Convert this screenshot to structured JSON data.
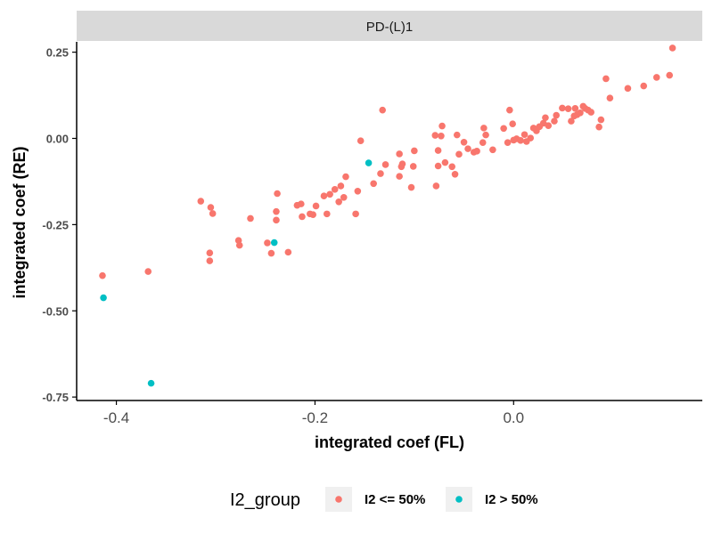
{
  "chart_data": {
    "type": "scatter",
    "facet_label": "PD-(L)1",
    "xlabel": "integrated coef (FL)",
    "ylabel": "integrated coef (RE)",
    "xlim": [
      -0.44,
      0.19
    ],
    "ylim": [
      -0.76,
      0.28
    ],
    "x_ticks": [
      -0.4,
      -0.2,
      0.0
    ],
    "x_tick_labels": [
      "-0.4",
      "-0.2",
      "0.0"
    ],
    "y_ticks": [
      0.25,
      0.0,
      -0.25,
      -0.5,
      -0.75
    ],
    "y_tick_labels": [
      "0.25",
      "0.00",
      "-0.25",
      "-0.50",
      "-0.75"
    ],
    "grid": false,
    "legend": {
      "title": "I2_group",
      "position": "bottom",
      "entries": [
        "I2 <= 50%",
        "I2 > 50%"
      ]
    },
    "colors": {
      "low": "#F8766D",
      "high": "#00BFC4",
      "facet_bg": "#D9D9D9",
      "axis": "#000000"
    },
    "series": [
      {
        "name": "I2 <= 50%",
        "points": [
          [
            0.16,
            0.262
          ],
          [
            0.157,
            0.183
          ],
          [
            0.144,
            0.177
          ],
          [
            0.131,
            0.152
          ],
          [
            0.115,
            0.145
          ],
          [
            0.097,
            0.117
          ],
          [
            0.093,
            0.173
          ],
          [
            0.088,
            0.054
          ],
          [
            0.086,
            0.033
          ],
          [
            0.078,
            0.076
          ],
          [
            0.075,
            0.082
          ],
          [
            0.072,
            0.087
          ],
          [
            0.07,
            0.093
          ],
          [
            0.067,
            0.074
          ],
          [
            0.064,
            0.069
          ],
          [
            0.062,
            0.087
          ],
          [
            0.061,
            0.065
          ],
          [
            0.058,
            0.05
          ],
          [
            0.055,
            0.086
          ],
          [
            0.049,
            0.088
          ],
          [
            0.043,
            0.067
          ],
          [
            0.041,
            0.05
          ],
          [
            0.035,
            0.037
          ],
          [
            0.032,
            0.06
          ],
          [
            0.03,
            0.044
          ],
          [
            0.026,
            0.034
          ],
          [
            0.023,
            0.022
          ],
          [
            0.02,
            0.03
          ],
          [
            0.017,
            0.001
          ],
          [
            0.013,
            -0.009
          ],
          [
            0.011,
            0.011
          ],
          [
            0.007,
            -0.006
          ],
          [
            0.003,
            -0.001
          ],
          [
            0.0,
            -0.005
          ],
          [
            -0.001,
            0.042
          ],
          [
            -0.004,
            0.082
          ],
          [
            -0.006,
            -0.012
          ],
          [
            -0.01,
            0.029
          ],
          [
            -0.021,
            -0.033
          ],
          [
            -0.028,
            0.01
          ],
          [
            -0.03,
            0.03
          ],
          [
            -0.031,
            -0.012
          ],
          [
            -0.037,
            -0.037
          ],
          [
            -0.04,
            -0.04
          ],
          [
            -0.046,
            -0.03
          ],
          [
            -0.05,
            -0.011
          ],
          [
            -0.055,
            -0.046
          ],
          [
            -0.057,
            0.01
          ],
          [
            -0.059,
            -0.104
          ],
          [
            -0.062,
            -0.082
          ],
          [
            -0.069,
            -0.07
          ],
          [
            -0.072,
            0.036
          ],
          [
            -0.073,
            0.007
          ],
          [
            -0.076,
            -0.035
          ],
          [
            -0.076,
            -0.08
          ],
          [
            -0.078,
            -0.138
          ],
          [
            -0.079,
            0.009
          ],
          [
            -0.1,
            -0.036
          ],
          [
            -0.101,
            -0.081
          ],
          [
            -0.103,
            -0.142
          ],
          [
            -0.112,
            -0.074
          ],
          [
            -0.113,
            -0.082
          ],
          [
            -0.115,
            -0.045
          ],
          [
            -0.115,
            -0.11
          ],
          [
            -0.129,
            -0.076
          ],
          [
            -0.132,
            0.082
          ],
          [
            -0.134,
            -0.102
          ],
          [
            -0.141,
            -0.131
          ],
          [
            -0.154,
            -0.007
          ],
          [
            -0.157,
            -0.153
          ],
          [
            -0.159,
            -0.219
          ],
          [
            -0.169,
            -0.111
          ],
          [
            -0.171,
            -0.171
          ],
          [
            -0.174,
            -0.138
          ],
          [
            -0.176,
            -0.184
          ],
          [
            -0.18,
            -0.148
          ],
          [
            -0.185,
            -0.162
          ],
          [
            -0.188,
            -0.219
          ],
          [
            -0.191,
            -0.167
          ],
          [
            -0.199,
            -0.196
          ],
          [
            -0.202,
            -0.221
          ],
          [
            -0.205,
            -0.219
          ],
          [
            -0.213,
            -0.227
          ],
          [
            -0.214,
            -0.19
          ],
          [
            -0.218,
            -0.194
          ],
          [
            -0.227,
            -0.33
          ],
          [
            -0.238,
            -0.16
          ],
          [
            -0.239,
            -0.212
          ],
          [
            -0.239,
            -0.237
          ],
          [
            -0.244,
            -0.333
          ],
          [
            -0.248,
            -0.303
          ],
          [
            -0.265,
            -0.232
          ],
          [
            -0.276,
            -0.31
          ],
          [
            -0.277,
            -0.296
          ],
          [
            -0.303,
            -0.218
          ],
          [
            -0.305,
            -0.2
          ],
          [
            -0.306,
            -0.355
          ],
          [
            -0.306,
            -0.332
          ],
          [
            -0.315,
            -0.182
          ],
          [
            -0.368,
            -0.386
          ],
          [
            -0.414,
            -0.398
          ]
        ]
      },
      {
        "name": "I2 > 50%",
        "points": [
          [
            -0.146,
            -0.071
          ],
          [
            -0.241,
            -0.302
          ],
          [
            -0.413,
            -0.462
          ],
          [
            -0.365,
            -0.71
          ]
        ]
      }
    ]
  }
}
